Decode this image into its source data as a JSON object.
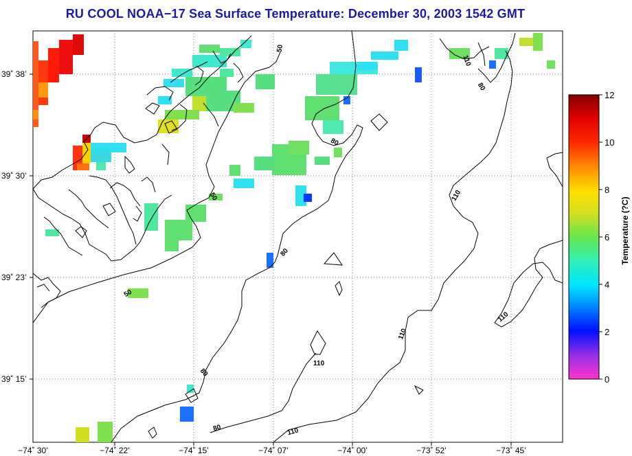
{
  "map": {
    "title": "RU COOL  NOAA−17  Sea Surface Temperature:  December 30, 2003 1542 GMT",
    "lon_labels": [
      "−74˚ 30’",
      "−74˚ 22’",
      "−74˚ 15’",
      "−74˚ 07’",
      "−74˚ 00’",
      "−73˚ 52’",
      "−73˚ 45’"
    ],
    "lat_labels": [
      "39˚ 38’",
      "39˚ 30’",
      "39˚ 23’",
      "39˚ 15’"
    ],
    "contour_labels": [
      "50",
      "50",
      "50",
      "80",
      "80",
      "80",
      "80",
      "80",
      "110",
      "110",
      "110",
      "110",
      "110",
      "110"
    ],
    "colorbar": {
      "title": "Temperature (?C)",
      "ticks": [
        "0",
        "2",
        "4",
        "6",
        "8",
        "10",
        "12"
      ],
      "min": 0,
      "max": 12
    }
  }
}
